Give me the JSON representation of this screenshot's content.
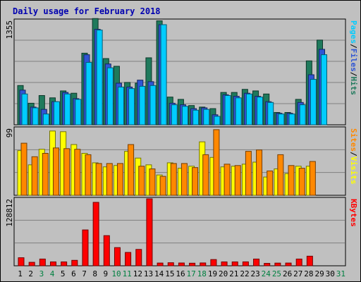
{
  "chart_data": {
    "type": "bar",
    "title": "Daily usage for February 2018",
    "days": [
      "1",
      "2",
      "3",
      "4",
      "5",
      "6",
      "7",
      "8",
      "9",
      "10",
      "11",
      "12",
      "13",
      "14",
      "15",
      "16",
      "17",
      "18",
      "19",
      "20",
      "21",
      "22",
      "23",
      "24",
      "25",
      "26",
      "27",
      "28",
      "29",
      "30",
      "31"
    ],
    "weekend_days": [
      "3",
      "4",
      "10",
      "11",
      "17",
      "18",
      "24",
      "25",
      "31"
    ],
    "panels": [
      {
        "name": "hits-panel",
        "ymax": 1355,
        "ymax_label": "1355",
        "right_labels": [
          "Pages",
          "/",
          "Files",
          "/",
          "Hits"
        ],
        "series": [
          {
            "name": "Hits",
            "color": "#1f7a5c",
            "values": [
              510,
              280,
              380,
              350,
              440,
              410,
              930,
              1380,
              860,
              760,
              550,
              540,
              870,
              1350,
              360,
              330,
              250,
              230,
              210,
              420,
              420,
              460,
              440,
              400,
              160,
              160,
              330,
              830,
              1100,
              0,
              0
            ]
          },
          {
            "name": "Files",
            "color": "#2f55d4",
            "values": [
              450,
              230,
              200,
              300,
              420,
              340,
              910,
              1240,
              790,
              540,
              490,
              580,
              560,
              1300,
              280,
              260,
              210,
              220,
              130,
              390,
              370,
              410,
              370,
              300,
              150,
              150,
              290,
              650,
              980,
              0,
              0
            ]
          },
          {
            "name": "Pages",
            "color": "#00ccff",
            "values": [
              400,
              220,
              140,
              300,
              400,
              330,
              810,
              1230,
              740,
              490,
              470,
              500,
              510,
              1300,
              260,
              240,
              190,
              200,
              110,
              380,
              350,
              400,
              360,
              290,
              140,
              140,
              260,
              590,
              910,
              0,
              0
            ]
          }
        ]
      },
      {
        "name": "visits-panel",
        "ymax": 99,
        "ymax_label": "99",
        "right_labels": [
          "Sites",
          "/",
          "Visits"
        ],
        "series": [
          {
            "name": "Visits",
            "color": "#ffff00",
            "values": [
              66,
              45,
              68,
              95,
              94,
              75,
              62,
              48,
              42,
              44,
              65,
              55,
              45,
              30,
              48,
              40,
              43,
              79,
              56,
              42,
              43,
              46,
              49,
              27,
              39,
              32,
              43,
              43,
              0,
              0,
              0
            ]
          },
          {
            "name": "Sites",
            "color": "#ff8800",
            "values": [
              77,
              57,
              62,
              70,
              69,
              68,
              60,
              47,
              47,
              47,
              75,
              43,
              39,
              28,
              47,
              47,
              41,
              60,
              97,
              46,
              44,
              65,
              67,
              36,
              60,
              44,
              40,
              50,
              0,
              0,
              0
            ]
          }
        ]
      },
      {
        "name": "kbytes-panel",
        "ymax": 128812,
        "ymax_label": "128812",
        "right_labels": [
          "KBytes"
        ],
        "series": [
          {
            "name": "KBytes",
            "color": "#ff0000",
            "values": [
              15500,
              6700,
              13000,
              7500,
              7500,
              10500,
              69000,
              122000,
              58000,
              35000,
              25700,
              31500,
              128812,
              5300,
              5900,
              5400,
              5000,
              5500,
              12000,
              7500,
              7500,
              7600,
              13000,
              4700,
              5200,
              5300,
              13000,
              18500,
              0,
              0,
              0
            ]
          }
        ]
      }
    ]
  }
}
